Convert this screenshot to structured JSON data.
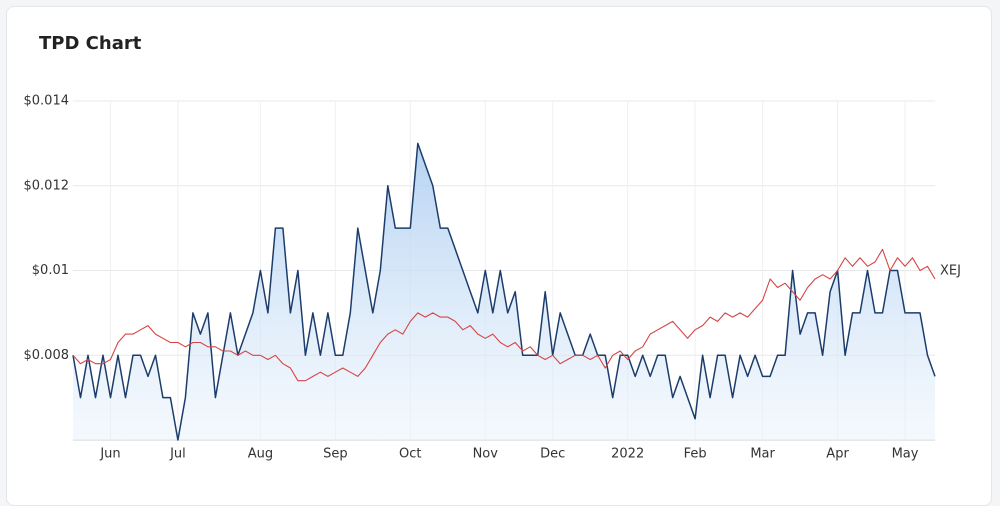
{
  "chart_data": {
    "type": "line",
    "title": "TPD Chart",
    "categories": [
      null,
      null,
      null,
      null,
      null,
      "Jun",
      null,
      null,
      null,
      null,
      null,
      null,
      null,
      null,
      "Jul",
      null,
      null,
      null,
      null,
      null,
      null,
      null,
      null,
      null,
      null,
      "Aug",
      null,
      null,
      null,
      null,
      null,
      null,
      null,
      null,
      null,
      "Sep",
      null,
      null,
      null,
      null,
      null,
      null,
      null,
      null,
      null,
      "Oct",
      null,
      null,
      null,
      null,
      null,
      null,
      null,
      null,
      null,
      "Nov",
      null,
      null,
      null,
      null,
      null,
      null,
      null,
      null,
      "Dec",
      null,
      null,
      null,
      null,
      null,
      null,
      null,
      null,
      null,
      "2022",
      null,
      null,
      null,
      null,
      null,
      null,
      null,
      null,
      "Feb",
      null,
      null,
      null,
      null,
      null,
      null,
      null,
      null,
      "Mar",
      null,
      null,
      null,
      null,
      null,
      null,
      null,
      null,
      null,
      "Apr",
      null,
      null,
      null,
      null,
      null,
      null,
      null,
      null,
      "May",
      null,
      null,
      null,
      null
    ],
    "series": [
      {
        "color": "#1c3d6b",
        "area": true,
        "values": [
          0.008,
          0.007,
          0.008,
          0.007,
          0.008,
          0.007,
          0.008,
          0.007,
          0.008,
          0.008,
          0.0075,
          0.008,
          0.007,
          0.007,
          0.006,
          0.007,
          0.009,
          0.0085,
          0.009,
          0.007,
          0.008,
          0.009,
          0.008,
          0.0085,
          0.009,
          0.01,
          0.009,
          0.011,
          0.011,
          0.009,
          0.01,
          0.008,
          0.009,
          0.008,
          0.009,
          0.008,
          0.008,
          0.009,
          0.011,
          0.01,
          0.009,
          0.01,
          0.012,
          0.011,
          0.011,
          0.011,
          0.013,
          0.0125,
          0.012,
          0.011,
          0.011,
          0.0105,
          0.01,
          0.0095,
          0.009,
          0.01,
          0.009,
          0.01,
          0.009,
          0.0095,
          0.008,
          0.008,
          0.008,
          0.0095,
          0.008,
          0.009,
          0.0085,
          0.008,
          0.008,
          0.0085,
          0.008,
          0.008,
          0.007,
          0.008,
          0.008,
          0.0075,
          0.008,
          0.0075,
          0.008,
          0.008,
          0.007,
          0.0075,
          0.007,
          0.0065,
          0.008,
          0.007,
          0.008,
          0.008,
          0.007,
          0.008,
          0.0075,
          0.008,
          0.0075,
          0.0075,
          0.008,
          0.008,
          0.01,
          0.0085,
          0.009,
          0.009,
          0.008,
          0.0095,
          0.01,
          0.008,
          0.009,
          0.009,
          0.01,
          0.009,
          0.009,
          0.01,
          0.01,
          0.009,
          0.009,
          0.009,
          0.008,
          0.0075
        ]
      },
      {
        "name": "XEJ",
        "color": "#d64545",
        "area": false,
        "values": [
          0.008,
          0.0078,
          0.0079,
          0.0078,
          0.0078,
          0.0079,
          0.0083,
          0.0085,
          0.0085,
          0.0086,
          0.0087,
          0.0085,
          0.0084,
          0.0083,
          0.0083,
          0.0082,
          0.0083,
          0.0083,
          0.0082,
          0.0082,
          0.0081,
          0.0081,
          0.008,
          0.0081,
          0.008,
          0.008,
          0.0079,
          0.008,
          0.0078,
          0.0077,
          0.0074,
          0.0074,
          0.0075,
          0.0076,
          0.0075,
          0.0076,
          0.0077,
          0.0076,
          0.0075,
          0.0077,
          0.008,
          0.0083,
          0.0085,
          0.0086,
          0.0085,
          0.0088,
          0.009,
          0.0089,
          0.009,
          0.0089,
          0.0089,
          0.0088,
          0.0086,
          0.0087,
          0.0085,
          0.0084,
          0.0085,
          0.0083,
          0.0082,
          0.0083,
          0.0081,
          0.0082,
          0.008,
          0.0079,
          0.008,
          0.0078,
          0.0079,
          0.008,
          0.008,
          0.0079,
          0.008,
          0.0077,
          0.008,
          0.0081,
          0.0079,
          0.0081,
          0.0082,
          0.0085,
          0.0086,
          0.0087,
          0.0088,
          0.0086,
          0.0084,
          0.0086,
          0.0087,
          0.0089,
          0.0088,
          0.009,
          0.0089,
          0.009,
          0.0089,
          0.0091,
          0.0093,
          0.0098,
          0.0096,
          0.0097,
          0.0095,
          0.0093,
          0.0096,
          0.0098,
          0.0099,
          0.0098,
          0.01,
          0.0103,
          0.0101,
          0.0103,
          0.0101,
          0.0102,
          0.0105,
          0.01,
          0.0103,
          0.0101,
          0.0103,
          0.01,
          0.0101,
          0.0098
        ]
      }
    ],
    "ylim": [
      0.006,
      0.014
    ],
    "yticks": [
      {
        "value": 0.008,
        "label": "$0.008"
      },
      {
        "value": 0.01,
        "label": "$0.01"
      },
      {
        "value": 0.012,
        "label": "$0.012"
      },
      {
        "value": 0.014,
        "label": "$0.014"
      }
    ],
    "grid": true
  }
}
